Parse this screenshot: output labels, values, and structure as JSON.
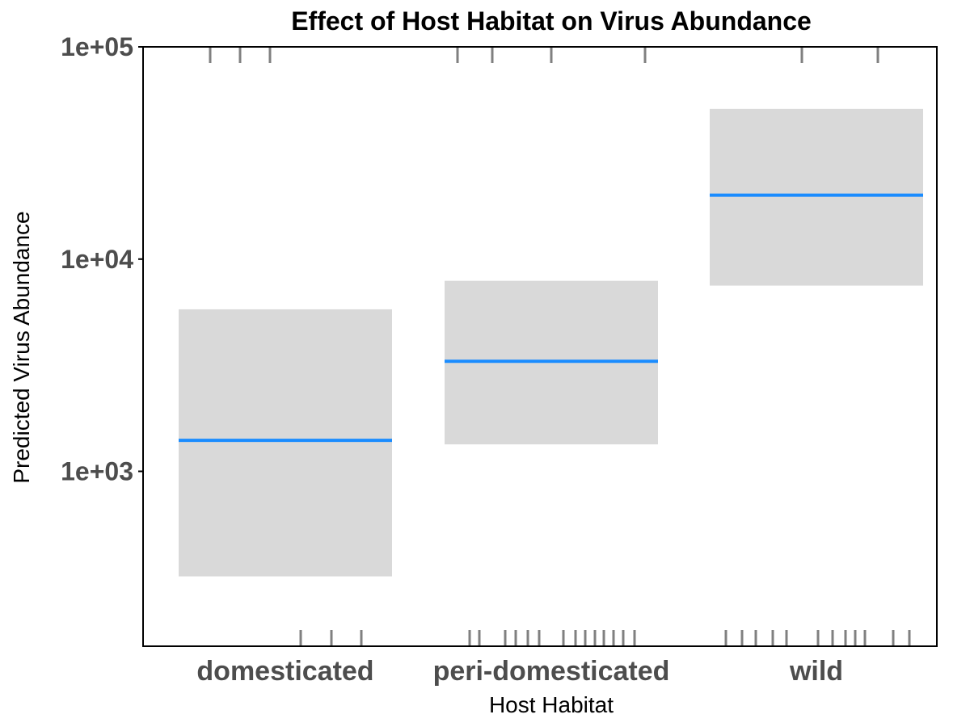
{
  "chart_data": {
    "type": "bar",
    "title": "Effect of Host Habitat on Virus Abundance",
    "xlabel": "Host Habitat",
    "ylabel": "Predicted Virus Abundance",
    "y_scale": "log10",
    "ylim": [
      150,
      100000
    ],
    "y_ticks": [
      {
        "value": 1000,
        "label": "1e+03"
      },
      {
        "value": 10000,
        "label": "1e+04"
      },
      {
        "value": 100000,
        "label": "1e+05"
      }
    ],
    "grid": false,
    "categories": [
      "domesticated",
      "peri-domesticated",
      "wild"
    ],
    "estimates": [
      1400,
      3300,
      20000
    ],
    "ci_lower": [
      320,
      1340,
      7500
    ],
    "ci_upper": [
      5800,
      7900,
      51000
    ],
    "rug_top": [
      [
        100000,
        100000,
        100000
      ],
      [
        100000,
        100000,
        100000,
        100000
      ],
      [
        100000,
        100000
      ]
    ],
    "rug_bottom_counts": [
      3,
      14,
      12
    ],
    "colors": {
      "estimate_line": "#1a8cff",
      "ci_band": "#d9d9d9",
      "rug": "#808080",
      "axis": "#000000",
      "tick_text": "#4d4d4d"
    }
  }
}
